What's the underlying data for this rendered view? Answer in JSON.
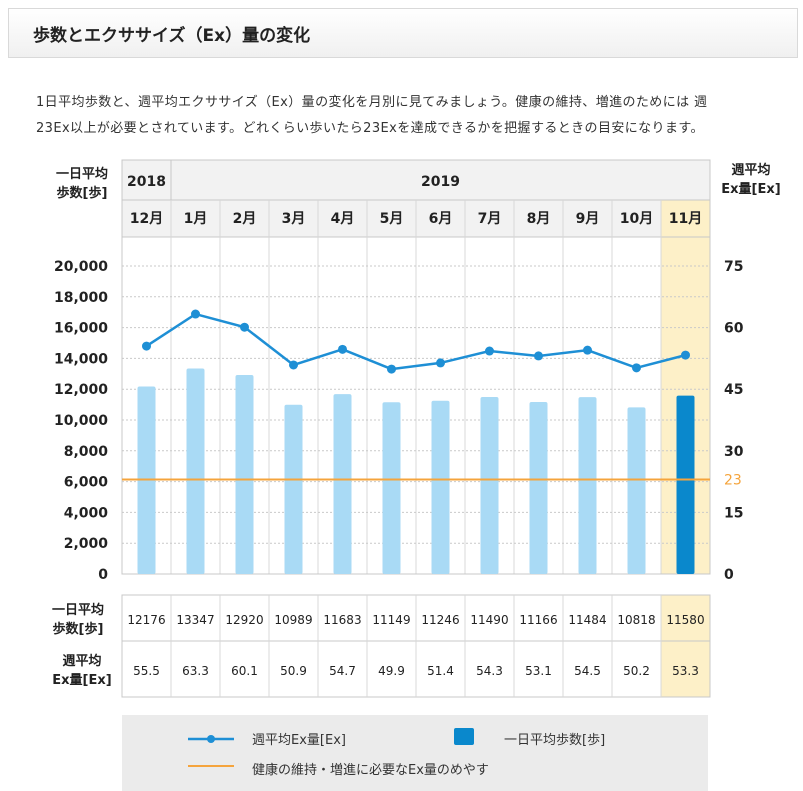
{
  "header": {
    "title": "歩数とエクササイズ（Ex）量の変化"
  },
  "description": {
    "line1": "1日平均歩数と、週平均エクササイズ（Ex）量の変化を月別に見てみましょう。健康の維持、増進のためには 週",
    "line2": "23Ex以上が必要とされています。どれくらい歩いたら23Exを達成できるかを把握するときの目安になります。"
  },
  "chart_data": {
    "type": "bar+line",
    "left_axis_title": [
      "一日平均",
      "歩数[歩]"
    ],
    "right_axis_title": [
      "週平均",
      "Ex量[Ex]"
    ],
    "years": [
      {
        "label": "2018",
        "span": 1
      },
      {
        "label": "2019",
        "span": 11
      }
    ],
    "categories": [
      "12月",
      "1月",
      "2月",
      "3月",
      "4月",
      "5月",
      "6月",
      "7月",
      "8月",
      "9月",
      "10月",
      "11月"
    ],
    "highlight_index": 11,
    "left_ylim": [
      0,
      20000
    ],
    "left_ticks": [
      "20,000",
      "18,000",
      "16,000",
      "14,000",
      "12,000",
      "10,000",
      "8,000",
      "6,000",
      "4,000",
      "2,000",
      "0"
    ],
    "right_ylim": [
      0,
      80
    ],
    "right_ticks": [
      "75",
      "60",
      "45",
      "30",
      "23",
      "15",
      "0"
    ],
    "target_ex": 23,
    "steps": [
      12176,
      13347,
      12920,
      10989,
      11683,
      11149,
      11246,
      11490,
      11166,
      11484,
      10818,
      11580
    ],
    "ex": [
      55.5,
      63.3,
      60.1,
      50.9,
      54.7,
      49.9,
      51.4,
      54.3,
      53.1,
      54.5,
      50.2,
      53.3
    ],
    "table_row_labels": [
      [
        "一日平均",
        "歩数[歩]"
      ],
      [
        "週平均",
        "Ex量[Ex]"
      ]
    ],
    "colors": {
      "bar": "#a9daf5",
      "bar_highlight": "#0a88cc",
      "line": "#1e8fd5",
      "target": "#f5a43c",
      "highlight_bg": "#fdf0c8",
      "header_bg": "#f2f2f2"
    },
    "legend": {
      "line": "週平均Ex量[Ex]",
      "bar": "一日平均歩数[歩]",
      "target": "健康の維持・増進に必要なEx量のめやす"
    }
  }
}
